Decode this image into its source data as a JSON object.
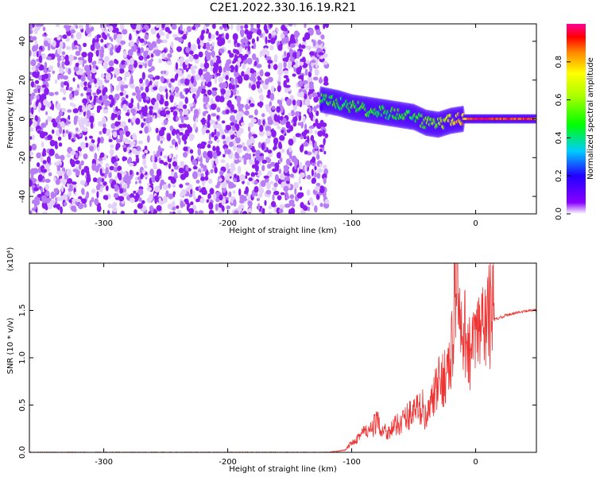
{
  "title": "C2E1.2022.330.16.19.R21",
  "chart_data": [
    {
      "type": "heatmap",
      "xlabel": "Height of straight line (km)",
      "ylabel": "Frequency (Hz)",
      "xlim": [
        -360,
        49
      ],
      "ylim": [
        -49,
        49
      ],
      "x_ticks": [
        -300,
        -200,
        -100,
        0
      ],
      "x_tick_labels": [
        "-300",
        "-200",
        "-100",
        "0"
      ],
      "y_ticks": [
        -40,
        -20,
        0,
        20,
        40
      ],
      "y_tick_labels": [
        "-40",
        "-20",
        "0",
        "20",
        "40"
      ],
      "colorbar": {
        "label": "Normalized spectral amplitude",
        "range": [
          0,
          1
        ],
        "ticks": [
          0.0,
          0.2,
          0.4,
          0.6,
          0.8
        ],
        "tick_labels": [
          "0.0",
          "0.2",
          "0.4",
          "0.6",
          "0.8"
        ]
      },
      "ridge": {
        "x": [
          -125,
          -110,
          -100,
          -90,
          -80,
          -70,
          -60,
          -50,
          -40,
          -30,
          -20,
          -10,
          0,
          10,
          20,
          30,
          40,
          49
        ],
        "frequency": [
          10,
          8,
          6,
          5,
          4,
          3,
          2,
          1,
          -2,
          -3,
          -1,
          0,
          0,
          0,
          0,
          0,
          0,
          0
        ],
        "amplitude": [
          0.5,
          0.45,
          0.5,
          0.5,
          0.45,
          0.45,
          0.5,
          0.45,
          0.55,
          0.6,
          0.7,
          0.8,
          0.95,
          0.95,
          0.9,
          0.9,
          0.9,
          0.9
        ]
      },
      "noise_region_x": [
        -360,
        -120
      ],
      "grid": false
    },
    {
      "type": "line",
      "xlabel": "Height of straight line (km)",
      "ylabel": "SNR (10 * v/v)",
      "y_multiplier_label": "(x10⁴)",
      "xlim": [
        -360,
        49
      ],
      "ylim": [
        0,
        2.0
      ],
      "x_ticks": [
        -300,
        -200,
        -100,
        0
      ],
      "x_tick_labels": [
        "-300",
        "-200",
        "-100",
        "0"
      ],
      "y_ticks": [
        0.0,
        0.5,
        1.0,
        1.5
      ],
      "y_tick_labels": [
        "0.0",
        "0.5",
        "1.0",
        "1.5"
      ],
      "color": "#ee3333",
      "series": [
        {
          "x": [
            -360,
            -300,
            -200,
            -150,
            -120,
            -105,
            -100,
            -95,
            -90,
            -85,
            -80,
            -75,
            -70,
            -65,
            -60,
            -55,
            -50,
            -45,
            -42,
            -40,
            -35,
            -30,
            -25,
            -22,
            -20,
            -18,
            -15,
            -14,
            -12,
            -10,
            -8,
            -5,
            -3,
            0,
            5,
            10,
            15,
            20,
            25,
            30,
            35,
            40,
            45,
            49
          ],
          "y": [
            0.0,
            0.0,
            0.0,
            0.0,
            0.0,
            0.02,
            0.1,
            0.15,
            0.2,
            0.2,
            0.3,
            0.22,
            0.2,
            0.25,
            0.3,
            0.35,
            0.4,
            0.42,
            0.45,
            0.3,
            0.5,
            0.65,
            0.75,
            0.8,
            0.85,
            1.3,
            2.0,
            1.4,
            1.1,
            1.0,
            1.2,
            1.0,
            0.95,
            1.1,
            1.2,
            1.3,
            1.4,
            1.43,
            1.45,
            1.47,
            1.48,
            1.49,
            1.5,
            1.5
          ]
        }
      ],
      "grid": false
    }
  ]
}
